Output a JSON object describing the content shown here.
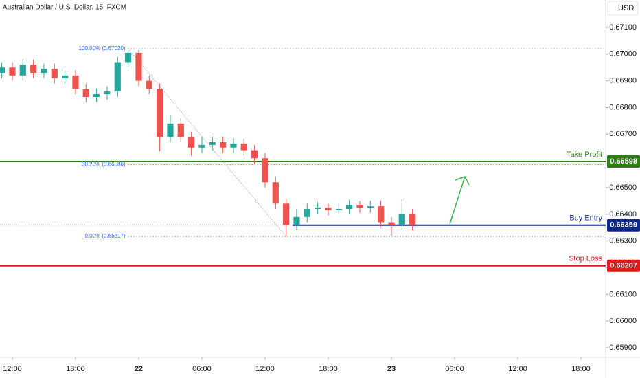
{
  "chart_data": {
    "type": "candlestick",
    "title": "Australian Dollar / U.S. Dollar, 15, FXCM",
    "currency": "USD",
    "up_color": "#26a69a",
    "down_color": "#ef5350",
    "x": [
      11,
      12,
      13,
      14,
      15,
      16,
      17,
      18,
      19,
      20,
      21,
      22,
      23,
      24,
      25,
      26,
      27,
      28,
      29,
      30,
      31,
      32,
      33,
      34,
      35,
      36,
      37,
      38,
      39,
      40,
      41,
      42,
      43,
      44,
      45,
      46,
      47,
      48,
      49,
      50
    ],
    "open": [
      0.6693,
      0.6695,
      0.6692,
      0.6696,
      0.6693,
      0.66945,
      0.6691,
      0.6692,
      0.6687,
      0.6684,
      0.6685,
      0.6686,
      0.6697,
      0.67005,
      0.669,
      0.6687,
      0.6669,
      0.6674,
      0.6669,
      0.6665,
      0.6666,
      0.6667,
      0.6665,
      0.66665,
      0.6664,
      0.6661,
      0.6652,
      0.6644,
      0.6636,
      0.6639,
      0.6642,
      0.66425,
      0.66415,
      0.6642,
      0.66435,
      0.66425,
      0.6643,
      0.6637,
      0.6636,
      0.664
    ],
    "high": [
      0.6697,
      0.6697,
      0.6698,
      0.6698,
      0.66965,
      0.66965,
      0.6694,
      0.6694,
      0.6689,
      0.6687,
      0.6688,
      0.6699,
      0.6702,
      0.67015,
      0.6692,
      0.6689,
      0.6677,
      0.6676,
      0.6671,
      0.6669,
      0.6669,
      0.6669,
      0.66685,
      0.66685,
      0.6666,
      0.6663,
      0.6654,
      0.6646,
      0.6642,
      0.6644,
      0.66445,
      0.6644,
      0.6644,
      0.66455,
      0.6645,
      0.6645,
      0.6645,
      0.6639,
      0.66456,
      0.6642
    ],
    "low": [
      0.6691,
      0.669,
      0.669,
      0.6691,
      0.6691,
      0.6689,
      0.6689,
      0.6685,
      0.6682,
      0.6682,
      0.6683,
      0.6684,
      0.6695,
      0.6688,
      0.6685,
      0.66636,
      0.6667,
      0.6667,
      0.6662,
      0.6663,
      0.6664,
      0.6663,
      0.6663,
      0.6662,
      0.6659,
      0.665,
      0.6642,
      0.66317,
      0.6634,
      0.6637,
      0.664,
      0.66395,
      0.664,
      0.664,
      0.66405,
      0.66405,
      0.6635,
      0.6632,
      0.6634,
      0.6634
    ],
    "close": [
      0.6695,
      0.6692,
      0.6696,
      0.6693,
      0.66945,
      0.6691,
      0.6692,
      0.6687,
      0.6684,
      0.6685,
      0.6686,
      0.6697,
      0.67005,
      0.669,
      0.6687,
      0.6669,
      0.6674,
      0.6669,
      0.6665,
      0.6666,
      0.6667,
      0.6665,
      0.66665,
      0.6664,
      0.6661,
      0.6652,
      0.6644,
      0.6636,
      0.6639,
      0.6642,
      0.66425,
      0.66415,
      0.6642,
      0.66435,
      0.66425,
      0.6643,
      0.6637,
      0.6636,
      0.664,
      0.66359
    ],
    "xlim": [
      10.83,
      68.35
    ],
    "ylim": [
      0.65864,
      0.67203
    ],
    "xticks": [
      {
        "value": 12,
        "label": "12:00"
      },
      {
        "value": 18,
        "label": "18:00"
      },
      {
        "value": 24,
        "label": "22"
      },
      {
        "value": 30,
        "label": "06:00"
      },
      {
        "value": 36,
        "label": "12:00"
      },
      {
        "value": 42,
        "label": "18:00"
      },
      {
        "value": 48,
        "label": "23"
      },
      {
        "value": 54,
        "label": "06:00"
      },
      {
        "value": 60,
        "label": "12:00"
      },
      {
        "value": 66,
        "label": "18:00"
      }
    ],
    "yticks": [
      {
        "value": 0.671,
        "label": "0.67100"
      },
      {
        "value": 0.67,
        "label": "0.67000"
      },
      {
        "value": 0.669,
        "label": "0.66900"
      },
      {
        "value": 0.668,
        "label": "0.66800"
      },
      {
        "value": 0.667,
        "label": "0.66700"
      },
      {
        "value": 0.666,
        "label": "0.66600"
      },
      {
        "value": 0.665,
        "label": "0.66500"
      },
      {
        "value": 0.664,
        "label": "0.66400"
      },
      {
        "value": 0.663,
        "label": "0.66300"
      },
      {
        "value": 0.662,
        "label": "0.66200"
      },
      {
        "value": 0.661,
        "label": "0.66100"
      },
      {
        "value": 0.66,
        "label": "0.66000"
      },
      {
        "value": 0.659,
        "label": "0.65900"
      }
    ],
    "levels": [
      {
        "name": "Take Profit",
        "value": 0.66598,
        "color": "#2e7d16"
      },
      {
        "name": "Buy Entry",
        "value": 0.66359,
        "color": "#0d2a8a"
      },
      {
        "name": "Stop Loss",
        "value": 0.66207,
        "color": "#e01b1b"
      }
    ],
    "fib": [
      {
        "value": 0.6702,
        "label": "100.00% (0.67020)"
      },
      {
        "value": 0.66586,
        "label": "38.20% (0.66586)"
      },
      {
        "value": 0.66317,
        "label": "0.00% (0.66317)"
      }
    ]
  }
}
